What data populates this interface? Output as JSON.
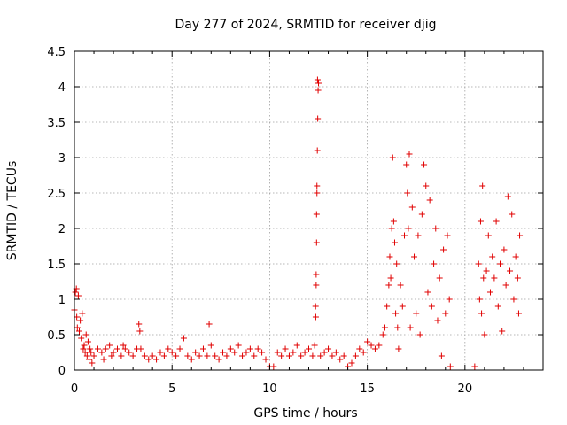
{
  "chart_data": {
    "type": "scatter",
    "title": "Day 277 of 2024, SRMTID for receiver djig",
    "xlabel": "GPS time / hours",
    "ylabel": "SRMTID / TECUs",
    "xlim": [
      0,
      24
    ],
    "ylim": [
      0,
      4.5
    ],
    "xticks": [
      0,
      5,
      10,
      15,
      20
    ],
    "xtick_labels": [
      "0",
      "5",
      "10",
      "15",
      "20"
    ],
    "yticks": [
      0,
      0.5,
      1,
      1.5,
      2,
      2.5,
      3,
      3.5,
      4,
      4.5
    ],
    "ytick_labels": [
      "0",
      "0.5",
      "1",
      "1.5",
      "2",
      "2.5",
      "3",
      "3.5",
      "4",
      "4.5"
    ],
    "grid": true,
    "marker": "+",
    "series_color": "#e00000",
    "series": [
      {
        "name": "SRMTID",
        "points": [
          [
            0.0,
            0.85
          ],
          [
            0.05,
            1.1
          ],
          [
            0.1,
            1.15
          ],
          [
            0.12,
            0.75
          ],
          [
            0.15,
            0.6
          ],
          [
            0.2,
            1.05
          ],
          [
            0.25,
            0.55
          ],
          [
            0.3,
            0.7
          ],
          [
            0.35,
            0.45
          ],
          [
            0.4,
            0.8
          ],
          [
            0.45,
            0.3
          ],
          [
            0.5,
            0.35
          ],
          [
            0.55,
            0.25
          ],
          [
            0.6,
            0.5
          ],
          [
            0.65,
            0.2
          ],
          [
            0.7,
            0.4
          ],
          [
            0.75,
            0.15
          ],
          [
            0.8,
            0.3
          ],
          [
            0.85,
            0.25
          ],
          [
            0.9,
            0.1
          ],
          [
            1.0,
            0.2
          ],
          [
            1.2,
            0.3
          ],
          [
            1.4,
            0.25
          ],
          [
            1.5,
            0.15
          ],
          [
            1.6,
            0.3
          ],
          [
            1.8,
            0.35
          ],
          [
            1.9,
            0.2
          ],
          [
            2.0,
            0.25
          ],
          [
            2.2,
            0.3
          ],
          [
            2.4,
            0.2
          ],
          [
            2.5,
            0.35
          ],
          [
            2.6,
            0.3
          ],
          [
            2.8,
            0.25
          ],
          [
            3.0,
            0.2
          ],
          [
            3.2,
            0.3
          ],
          [
            3.3,
            0.65
          ],
          [
            3.35,
            0.55
          ],
          [
            3.4,
            0.3
          ],
          [
            3.6,
            0.2
          ],
          [
            3.8,
            0.15
          ],
          [
            4.0,
            0.2
          ],
          [
            4.2,
            0.15
          ],
          [
            4.4,
            0.25
          ],
          [
            4.6,
            0.2
          ],
          [
            4.8,
            0.3
          ],
          [
            5.0,
            0.25
          ],
          [
            5.2,
            0.2
          ],
          [
            5.4,
            0.3
          ],
          [
            5.6,
            0.45
          ],
          [
            5.8,
            0.2
          ],
          [
            6.0,
            0.15
          ],
          [
            6.2,
            0.25
          ],
          [
            6.4,
            0.2
          ],
          [
            6.6,
            0.3
          ],
          [
            6.8,
            0.2
          ],
          [
            6.9,
            0.65
          ],
          [
            7.0,
            0.35
          ],
          [
            7.2,
            0.2
          ],
          [
            7.4,
            0.15
          ],
          [
            7.6,
            0.25
          ],
          [
            7.8,
            0.2
          ],
          [
            8.0,
            0.3
          ],
          [
            8.2,
            0.25
          ],
          [
            8.4,
            0.35
          ],
          [
            8.6,
            0.2
          ],
          [
            8.8,
            0.25
          ],
          [
            9.0,
            0.3
          ],
          [
            9.2,
            0.2
          ],
          [
            9.4,
            0.3
          ],
          [
            9.6,
            0.25
          ],
          [
            9.8,
            0.15
          ],
          [
            10.0,
            0.05
          ],
          [
            10.2,
            0.05
          ],
          [
            10.4,
            0.25
          ],
          [
            10.6,
            0.2
          ],
          [
            10.8,
            0.3
          ],
          [
            11.0,
            0.2
          ],
          [
            11.2,
            0.25
          ],
          [
            11.4,
            0.35
          ],
          [
            11.6,
            0.2
          ],
          [
            11.8,
            0.25
          ],
          [
            12.0,
            0.3
          ],
          [
            12.2,
            0.2
          ],
          [
            12.3,
            0.35
          ],
          [
            12.35,
            0.9
          ],
          [
            12.38,
            1.35
          ],
          [
            12.4,
            1.8
          ],
          [
            12.42,
            2.5
          ],
          [
            12.44,
            3.1
          ],
          [
            12.46,
            3.55
          ],
          [
            12.48,
            3.95
          ],
          [
            12.5,
            4.05
          ],
          [
            12.45,
            4.1
          ],
          [
            12.42,
            2.6
          ],
          [
            12.4,
            2.2
          ],
          [
            12.38,
            1.2
          ],
          [
            12.36,
            0.75
          ],
          [
            12.6,
            0.2
          ],
          [
            12.8,
            0.25
          ],
          [
            13.0,
            0.3
          ],
          [
            13.2,
            0.2
          ],
          [
            13.4,
            0.25
          ],
          [
            13.6,
            0.15
          ],
          [
            13.8,
            0.2
          ],
          [
            14.0,
            0.05
          ],
          [
            14.2,
            0.1
          ],
          [
            14.4,
            0.2
          ],
          [
            14.6,
            0.3
          ],
          [
            14.8,
            0.25
          ],
          [
            15.0,
            0.4
          ],
          [
            15.2,
            0.35
          ],
          [
            15.4,
            0.3
          ],
          [
            15.6,
            0.35
          ],
          [
            15.8,
            0.5
          ],
          [
            15.9,
            0.6
          ],
          [
            16.0,
            0.9
          ],
          [
            16.1,
            1.2
          ],
          [
            16.15,
            1.6
          ],
          [
            16.2,
            1.3
          ],
          [
            16.25,
            2.0
          ],
          [
            16.3,
            3.0
          ],
          [
            16.35,
            2.1
          ],
          [
            16.4,
            1.8
          ],
          [
            16.45,
            0.8
          ],
          [
            16.5,
            1.5
          ],
          [
            16.55,
            0.6
          ],
          [
            16.6,
            0.3
          ],
          [
            16.7,
            1.2
          ],
          [
            16.8,
            0.9
          ],
          [
            16.9,
            1.9
          ],
          [
            17.0,
            2.9
          ],
          [
            17.05,
            2.5
          ],
          [
            17.1,
            2.0
          ],
          [
            17.15,
            3.05
          ],
          [
            17.2,
            0.6
          ],
          [
            17.3,
            2.3
          ],
          [
            17.4,
            1.6
          ],
          [
            17.5,
            0.8
          ],
          [
            17.6,
            1.9
          ],
          [
            17.7,
            0.5
          ],
          [
            17.8,
            2.2
          ],
          [
            17.9,
            2.9
          ],
          [
            18.0,
            2.6
          ],
          [
            18.1,
            1.1
          ],
          [
            18.2,
            2.4
          ],
          [
            18.3,
            0.9
          ],
          [
            18.4,
            1.5
          ],
          [
            18.5,
            2.0
          ],
          [
            18.6,
            0.7
          ],
          [
            18.7,
            1.3
          ],
          [
            18.8,
            0.2
          ],
          [
            18.9,
            1.7
          ],
          [
            19.0,
            0.8
          ],
          [
            19.1,
            1.9
          ],
          [
            19.2,
            1.0
          ],
          [
            19.25,
            0.05
          ],
          [
            20.5,
            0.05
          ],
          [
            20.7,
            1.5
          ],
          [
            20.75,
            1.0
          ],
          [
            20.8,
            2.1
          ],
          [
            20.85,
            0.8
          ],
          [
            20.9,
            2.6
          ],
          [
            20.95,
            1.3
          ],
          [
            21.0,
            0.5
          ],
          [
            21.1,
            1.4
          ],
          [
            21.2,
            1.9
          ],
          [
            21.3,
            1.1
          ],
          [
            21.4,
            1.6
          ],
          [
            21.5,
            1.3
          ],
          [
            21.6,
            2.1
          ],
          [
            21.7,
            0.9
          ],
          [
            21.8,
            1.5
          ],
          [
            21.9,
            0.55
          ],
          [
            22.0,
            1.7
          ],
          [
            22.1,
            1.2
          ],
          [
            22.2,
            2.45
          ],
          [
            22.3,
            1.4
          ],
          [
            22.4,
            2.2
          ],
          [
            22.5,
            1.0
          ],
          [
            22.6,
            1.6
          ],
          [
            22.7,
            1.3
          ],
          [
            22.75,
            0.8
          ],
          [
            22.8,
            1.9
          ]
        ]
      }
    ]
  }
}
